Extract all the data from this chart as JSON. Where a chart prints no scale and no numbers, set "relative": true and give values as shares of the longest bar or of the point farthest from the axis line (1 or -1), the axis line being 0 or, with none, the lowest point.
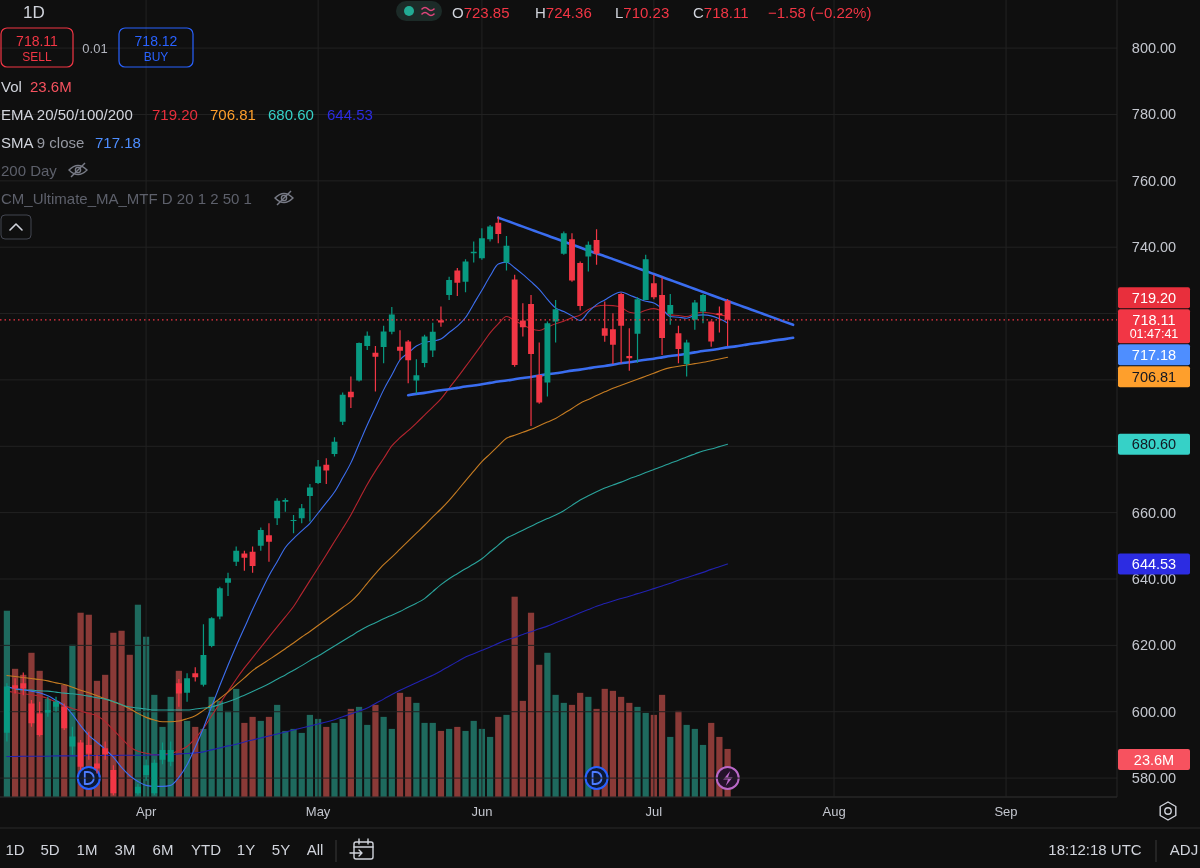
{
  "chart_data": [
    {
      "type": "candlestick",
      "title": "1D",
      "annotations": [
        "O723.85",
        "H724.36",
        "L710.23",
        "C718.11",
        "−1.58 (−0.22%)",
        "718.11",
        "SELL",
        "0.01",
        "718.12",
        "BUY",
        "EMA 20/50/100/200",
        "SMA 9 close",
        "200 Day",
        "CM_Ultimate_MA_MTF D 20 1 2 50 1",
        "01:47:41",
        "1D",
        "5D",
        "1M",
        "3M",
        "6M",
        "YTD",
        "1Y",
        "5Y",
        "All",
        "18:12:18 UTC",
        "ADJ",
        "719.20",
        "706.81",
        "680.60",
        "644.53",
        "717.18"
      ],
      "categories": [
        null,
        null,
        null,
        null,
        null,
        null,
        null,
        null,
        null,
        null,
        null,
        null,
        null,
        null,
        null,
        null,
        null,
        "Apr",
        null,
        null,
        null,
        null,
        null,
        null,
        null,
        null,
        null,
        null,
        null,
        null,
        null,
        null,
        null,
        null,
        null,
        null,
        null,
        null,
        "May",
        null,
        null,
        null,
        null,
        null,
        null,
        null,
        null,
        null,
        null,
        null,
        null,
        null,
        null,
        null,
        null,
        null,
        null,
        null,
        "Jun",
        null,
        null,
        null,
        null,
        null,
        null,
        null,
        null,
        null,
        null,
        null,
        null,
        null,
        null,
        null,
        null,
        null,
        null,
        null,
        null,
        "Jul",
        null,
        null,
        null,
        null,
        null,
        null,
        null,
        null,
        null,
        null,
        null,
        null,
        null,
        null,
        null,
        null,
        null,
        null,
        null,
        null,
        null,
        "Aug",
        null,
        null,
        null,
        null,
        null,
        null,
        null,
        null,
        null,
        null,
        null,
        null,
        null,
        null,
        null,
        null,
        null,
        null,
        null,
        null,
        "Sep",
        null,
        null,
        null,
        null,
        null,
        null,
        null,
        null,
        null,
        null,
        null,
        null,
        null
      ],
      "ohlc": [
        [
          593.7,
          608.6,
          591.0,
          607.6
        ],
        [
          608.0,
          610.1,
          605.5,
          607.0
        ],
        [
          608.6,
          611.8,
          605.0,
          607.0
        ],
        [
          602.5,
          603.5,
          595.5,
          596.5
        ],
        [
          599.5,
          603.0,
          592.5,
          593.0
        ],
        [
          599.7,
          604.5,
          598.5,
          600.5
        ],
        [
          601.5,
          604.5,
          600.0,
          603.0
        ],
        [
          601.5,
          602.5,
          594.5,
          595.0
        ],
        [
          589.5,
          595.5,
          587.0,
          592.5
        ],
        [
          590.7,
          591.5,
          582.4,
          583.4
        ],
        [
          590.0,
          594.0,
          585.5,
          587.3
        ],
        [
          584.4,
          586.9,
          581.4,
          582.9
        ],
        [
          589.0,
          591.0,
          585.5,
          587.2
        ],
        [
          582.4,
          583.9,
          574.8,
          575.4
        ],
        null,
        null,
        [
          575.4,
          578.2,
          575.0,
          577.4
        ],
        [
          580.9,
          585.6,
          579.2,
          583.9
        ],
        [
          575.4,
          585.6,
          575.0,
          584.6
        ],
        [
          585.5,
          590.7,
          584.2,
          588.5
        ],
        [
          584.9,
          591.0,
          583.6,
          588.5
        ],
        [
          608.6,
          609.9,
          601.5,
          605.5
        ],
        [
          605.7,
          611.6,
          603.0,
          610.1
        ],
        [
          611.6,
          613.4,
          609.1,
          610.4
        ],
        [
          608.1,
          626.4,
          607.6,
          617.1
        ],
        [
          619.8,
          628.5,
          619.4,
          628.2
        ],
        [
          628.7,
          637.7,
          627.9,
          637.2
        ],
        [
          638.9,
          641.9,
          634.9,
          640.2
        ],
        [
          645.2,
          649.8,
          643.9,
          648.5
        ],
        [
          647.7,
          648.5,
          642.5,
          646.4
        ],
        [
          648.2,
          649.8,
          641.9,
          643.9
        ],
        [
          650.0,
          655.5,
          648.5,
          654.8
        ],
        [
          653.2,
          656.8,
          645.2,
          651.2
        ],
        [
          658.3,
          664.3,
          656.3,
          663.6
        ],
        [
          663.3,
          664.3,
          660.3,
          663.8
        ],
        [
          657.6,
          659.3,
          653.8,
          657.8
        ],
        [
          658.3,
          662.6,
          656.8,
          661.3
        ],
        [
          665.0,
          668.6,
          657.3,
          667.6
        ],
        [
          668.9,
          675.9,
          668.6,
          673.9
        ],
        [
          674.4,
          676.4,
          668.6,
          672.7
        ],
        [
          677.7,
          682.7,
          676.9,
          681.4
        ],
        [
          687.4,
          696.2,
          686.4,
          695.5
        ],
        [
          696.4,
          701.0,
          691.5,
          694.8
        ],
        [
          699.8,
          711.3,
          699.5,
          711.1
        ],
        [
          710.2,
          714.6,
          709.0,
          713.3
        ],
        [
          708.2,
          710.2,
          696.5,
          707.0
        ],
        [
          709.9,
          716.3,
          705.0,
          714.6
        ],
        [
          714.5,
          722.0,
          713.8,
          719.7
        ],
        [
          710.0,
          715.0,
          706.0,
          708.8
        ],
        [
          711.6,
          712.0,
          699.0,
          705.9
        ],
        [
          699.8,
          706.2,
          695.9,
          701.4
        ],
        [
          705.1,
          713.6,
          703.8,
          713.1
        ],
        [
          708.9,
          717.2,
          706.9,
          714.5
        ],
        [
          718.0,
          722.1,
          716.0,
          717.3
        ],
        [
          725.6,
          731.1,
          724.1,
          730.1
        ],
        [
          733.0,
          733.7,
          725.3,
          729.3
        ],
        [
          729.6,
          736.4,
          726.4,
          735.7
        ],
        [
          738.2,
          741.7,
          735.4,
          738.6
        ],
        [
          736.7,
          745.7,
          736.2,
          742.7
        ],
        [
          742.4,
          746.7,
          741.7,
          746.2
        ],
        [
          747.4,
          749.2,
          741.2,
          744.0
        ],
        [
          735.4,
          743.4,
          733.0,
          740.4
        ],
        [
          730.3,
          731.7,
          704.0,
          704.5
        ],
        [
          717.9,
          723.1,
          713.1,
          715.9
        ],
        [
          722.9,
          725.6,
          686.1,
          707.8
        ],
        [
          701.5,
          711.3,
          692.8,
          693.2
        ],
        [
          699.2,
          717.6,
          695.0,
          717.1
        ],
        [
          717.6,
          724.1,
          711.3,
          721.3
        ],
        [
          738.0,
          744.7,
          737.7,
          744.2
        ],
        [
          742.4,
          744.2,
          729.6,
          730.0
        ],
        [
          735.2,
          735.7,
          720.9,
          722.3
        ],
        [
          737.2,
          741.7,
          732.7,
          740.7
        ],
        [
          742.2,
          745.4,
          734.7,
          738.0
        ],
        [
          715.6,
          723.6,
          711.5,
          713.3
        ],
        [
          715.3,
          720.1,
          704.8,
          710.6
        ],
        [
          725.9,
          726.3,
          705.0,
          716.3
        ],
        [
          707.2,
          715.6,
          702.8,
          706.5
        ],
        [
          713.9,
          724.9,
          705.2,
          724.3
        ],
        [
          724.1,
          737.7,
          724.1,
          736.4
        ],
        [
          729.1,
          731.7,
          724.3,
          724.9
        ],
        [
          725.6,
          730.9,
          707.5,
          712.6
        ],
        [
          719.9,
          725.9,
          716.6,
          722.6
        ],
        [
          714.1,
          716.3,
          705.0,
          709.3
        ],
        [
          704.8,
          712.1,
          701.0,
          711.3
        ],
        [
          718.1,
          724.1,
          715.1,
          723.3
        ],
        [
          720.6,
          725.9,
          717.1,
          725.6
        ],
        [
          717.6,
          717.9,
          710.0,
          711.6
        ],
        [
          720.1,
          722.1,
          714.3,
          719.6
        ],
        [
          723.85,
          724.36,
          710.23,
          718.11
        ],
        null,
        null,
        null,
        null,
        null,
        null,
        null,
        null,
        null,
        null,
        null,
        null,
        null,
        null,
        null,
        null,
        null,
        null,
        null,
        null,
        null,
        null,
        null,
        null,
        null,
        null,
        null,
        null,
        null,
        null,
        null,
        null,
        null,
        null,
        null,
        null,
        null,
        null,
        null,
        null,
        null,
        null,
        null,
        null,
        null,
        null,
        null
      ],
      "colors": [
        "#089981",
        "#f23645",
        "#f23645",
        "#f23645",
        "#f23645",
        "#089981",
        "#089981",
        "#f23645",
        "#089981",
        "#f23645",
        "#f23645",
        "#f23645",
        "#f23645",
        "#f23645",
        "#f23645",
        "#f23645",
        "#089981",
        "#089981",
        "#089981",
        "#089981",
        "#089981",
        "#f23645",
        "#089981",
        "#f23645",
        "#089981",
        "#089981",
        "#089981",
        "#089981",
        "#089981",
        "#f23645",
        "#f23645",
        "#089981",
        "#f23645",
        "#089981",
        "#089981",
        "#089981",
        "#089981",
        "#089981",
        "#089981",
        "#f23645",
        "#089981",
        "#089981",
        "#f23645",
        "#089981",
        "#089981",
        "#f23645",
        "#089981",
        "#089981",
        "#f23645",
        "#f23645",
        "#089981",
        "#089981",
        "#089981",
        "#f23645",
        "#089981",
        "#f23645",
        "#089981",
        "#089981",
        "#089981",
        "#089981",
        "#f23645",
        "#089981",
        "#f23645",
        "#f23645",
        "#f23645",
        "#f23645",
        "#089981",
        "#089981",
        "#089981",
        "#f23645",
        "#f23645",
        "#089981",
        "#f23645",
        "#f23645",
        "#f23645",
        "#f23645",
        "#f23645",
        "#089981",
        "#089981",
        "#f23645",
        "#f23645",
        "#089981",
        "#f23645",
        "#089981",
        "#089981",
        "#089981",
        "#f23645",
        "#f23645",
        "#f23645",
        null,
        null,
        null,
        null,
        null,
        null,
        null,
        null,
        null,
        null,
        null,
        null,
        null,
        null,
        null,
        null,
        null,
        null,
        null,
        null,
        null,
        null,
        null,
        null,
        null,
        null,
        null,
        null,
        null,
        null,
        null,
        null,
        null,
        null,
        null,
        null,
        null,
        null,
        null,
        null,
        null,
        null,
        null,
        null,
        null,
        null,
        null
      ],
      "series": [
        {
          "type": "line",
          "color": "#b5252f",
          "values": [
            606.2,
            605.8,
            605.4,
            605.1,
            604.7,
            604.0,
            602.9,
            601.8,
            601.0,
            600.2,
            599.5,
            598.8,
            597.0,
            594.5,
            592.0,
            589.5,
            588.1,
            587.5,
            587.0,
            587.2,
            587.4,
            588.3,
            589.5,
            592.0,
            595.0,
            598.8,
            602.5,
            606.1,
            609.8,
            613.2,
            616.3,
            619.4,
            622.5,
            625.6,
            628.6,
            631.7,
            635.6,
            639.5,
            643.4,
            647.3,
            651.3,
            655.2,
            659.3,
            663.9,
            668.5,
            672.6,
            676.3,
            680.1,
            682.6,
            684.7,
            687.0,
            689.4,
            691.8,
            694.3,
            697.5,
            700.7,
            704.0,
            707.3,
            710.7,
            714.2,
            716.9,
            719.1,
            717.9,
            716.6,
            715.4,
            714.9,
            715.9,
            716.9,
            717.7,
            718.7,
            719.6,
            721.2,
            722.2,
            722.5,
            722.4,
            721.9,
            720.4,
            720.1,
            721.0,
            721.5,
            720.8,
            719.6,
            719.4,
            719.1,
            720.0,
            720.4,
            720.1,
            719.6,
            719.2,
            null,
            null,
            null,
            null,
            null,
            null,
            null,
            null,
            null,
            null,
            null,
            null,
            null,
            null,
            null,
            null,
            null,
            null,
            null,
            null,
            null,
            null,
            null,
            null,
            null,
            null,
            null,
            null,
            null,
            null,
            null,
            null,
            null,
            null,
            null,
            null,
            null,
            null,
            null,
            null,
            null,
            null,
            null,
            null,
            null,
            null,
            null
          ]
        },
        {
          "type": "line",
          "color": "#c67c22",
          "values": [
            610.9,
            610.6,
            610.3,
            610.0,
            609.7,
            609.3,
            608.7,
            608.2,
            607.4,
            606.5,
            605.7,
            604.8,
            603.9,
            603.0,
            602.1,
            600.9,
            599.5,
            598.3,
            597.5,
            597.0,
            597.0,
            597.2,
            597.9,
            598.8,
            600.4,
            602.1,
            604.0,
            605.9,
            608.1,
            610.2,
            612.4,
            614.1,
            615.7,
            617.3,
            619.0,
            620.7,
            622.5,
            624.2,
            626.0,
            627.8,
            629.6,
            631.4,
            633.2,
            635.7,
            638.7,
            641.6,
            644.3,
            646.6,
            649.0,
            651.4,
            653.8,
            656.2,
            658.7,
            661.1,
            663.7,
            666.6,
            669.6,
            672.5,
            675.4,
            677.7,
            680.1,
            682.4,
            683.3,
            684.2,
            685.1,
            686.2,
            687.3,
            688.4,
            689.9,
            691.4,
            693.0,
            694.1,
            695.3,
            696.4,
            697.5,
            698.4,
            699.3,
            700.2,
            701.1,
            702.0,
            703.0,
            703.7,
            704.1,
            704.5,
            704.9,
            705.3,
            705.8,
            706.3,
            706.81,
            null,
            null,
            null,
            null,
            null,
            null,
            null,
            null,
            null,
            null,
            null,
            null,
            null,
            null,
            null,
            null,
            null,
            null,
            null,
            null,
            null,
            null,
            null,
            null,
            null,
            null,
            null,
            null,
            null,
            null,
            null,
            null,
            null,
            null,
            null,
            null,
            null,
            null,
            null,
            null,
            null,
            null,
            null,
            null,
            null,
            null,
            null
          ]
        },
        {
          "type": "line",
          "color": "#2aa39b",
          "values": [
            null,
            606.8,
            606.6,
            606.5,
            606.3,
            606.2,
            605.9,
            605.6,
            605.4,
            605.1,
            604.7,
            604.2,
            603.8,
            603.1,
            602.1,
            601.4,
            601.1,
            600.8,
            600.5,
            600.5,
            600.5,
            600.5,
            600.5,
            600.8,
            601.1,
            601.4,
            602.2,
            603.0,
            603.9,
            605.0,
            606.1,
            607.2,
            608.4,
            609.8,
            611.1,
            612.5,
            613.9,
            615.4,
            616.8,
            618.3,
            619.8,
            621.3,
            622.8,
            624.3,
            625.7,
            626.8,
            628.0,
            629.1,
            630.2,
            631.5,
            632.7,
            634.1,
            636.2,
            638.3,
            640.1,
            641.6,
            643.1,
            644.5,
            646.1,
            648.2,
            650.2,
            652.3,
            653.5,
            654.7,
            655.9,
            657.1,
            658.2,
            659.3,
            660.6,
            662.2,
            663.8,
            665.1,
            666.3,
            667.4,
            668.3,
            669.2,
            670.2,
            671.1,
            672.1,
            673.0,
            673.9,
            674.9,
            675.8,
            676.8,
            677.7,
            678.6,
            679.2,
            679.9,
            680.6,
            null,
            null,
            null,
            null,
            null,
            null,
            null,
            null,
            null,
            null,
            null,
            null,
            null,
            null,
            null,
            null,
            null,
            null,
            null,
            null,
            null,
            null,
            null,
            null,
            null,
            null,
            null,
            null,
            null,
            null,
            null,
            null,
            null,
            null,
            null,
            null,
            null,
            null,
            null,
            null,
            null,
            null,
            null,
            null,
            null,
            null,
            null
          ]
        },
        {
          "type": "line",
          "color": "#2222b0",
          "values": [
            586.5,
            586.5,
            586.6,
            586.6,
            586.6,
            586.6,
            586.7,
            586.7,
            586.7,
            586.7,
            586.8,
            586.8,
            586.8,
            586.8,
            586.9,
            586.9,
            586.9,
            586.9,
            587.0,
            587.0,
            587.1,
            587.3,
            587.4,
            587.6,
            587.9,
            588.5,
            589.1,
            589.7,
            590.2,
            590.9,
            591.5,
            592.1,
            592.7,
            593.3,
            593.9,
            594.5,
            595.1,
            595.7,
            596.3,
            596.9,
            597.6,
            598.5,
            599.3,
            600.2,
            601.1,
            602.5,
            603.8,
            605.2,
            606.5,
            607.6,
            608.7,
            609.9,
            611.0,
            612.3,
            613.7,
            615.1,
            616.5,
            617.5,
            618.5,
            619.5,
            620.6,
            621.6,
            622.4,
            623.3,
            624.1,
            625.0,
            625.8,
            626.8,
            627.8,
            628.8,
            629.8,
            630.8,
            631.8,
            632.6,
            633.4,
            634.1,
            634.8,
            635.6,
            636.3,
            637.1,
            637.9,
            638.7,
            639.6,
            640.4,
            641.2,
            642.0,
            642.9,
            643.7,
            644.53,
            null,
            null,
            null,
            null,
            null,
            null,
            null,
            null,
            null,
            null,
            null,
            null,
            null,
            null,
            null,
            null,
            null,
            null,
            null,
            null,
            null,
            null,
            null,
            null,
            null,
            null,
            null,
            null,
            null,
            null,
            null,
            null,
            null,
            null,
            null,
            null,
            null,
            null,
            null,
            null,
            null,
            null,
            null,
            null,
            null,
            null,
            null
          ]
        },
        {
          "type": "line",
          "color": "#3d6ff0",
          "values": [
            607.5,
            607.0,
            606.6,
            606.2,
            605.7,
            604.8,
            603.4,
            601.9,
            599.2,
            595.8,
            592.9,
            590.8,
            588.7,
            586.3,
            583.2,
            580.7,
            579.0,
            577.8,
            577.5,
            577.5,
            577.8,
            580.2,
            584.0,
            589.3,
            595.1,
            601.6,
            607.9,
            614.0,
            619.8,
            625.3,
            630.8,
            636.0,
            641.0,
            645.2,
            649.5,
            652.2,
            654.5,
            656.8,
            659.9,
            663.0,
            666.2,
            670.5,
            675.0,
            680.7,
            686.4,
            691.7,
            697.0,
            701.5,
            706.0,
            708.1,
            710.2,
            711.3,
            711.7,
            712.3,
            714.3,
            716.2,
            718.8,
            722.9,
            727.0,
            731.3,
            734.9,
            735.5,
            733.8,
            731.8,
            729.6,
            727.3,
            724.3,
            721.7,
            720.6,
            719.3,
            717.9,
            720.5,
            722.7,
            724.1,
            725.6,
            726.5,
            725.6,
            724.6,
            723.7,
            723.2,
            721.5,
            719.1,
            718.9,
            718.6,
            719.4,
            719.6,
            719.3,
            718.4,
            717.18,
            null,
            null,
            null,
            null,
            null,
            null,
            null,
            null,
            null,
            null,
            null,
            null,
            null,
            null,
            null,
            null,
            null,
            null,
            null,
            null,
            null,
            null,
            null,
            null,
            null,
            null,
            null,
            null,
            null,
            null,
            null,
            null,
            null,
            null,
            null,
            null,
            null,
            null,
            null,
            null,
            null,
            null,
            null,
            null,
            null,
            null,
            null
          ]
        },
        {
          "type": "line",
          "color": "#3a6df0",
          "values": [
            null,
            null,
            null,
            null,
            null,
            null,
            null,
            null,
            null,
            null,
            null,
            null,
            null,
            null,
            null,
            null,
            null,
            null,
            null,
            null,
            null,
            null,
            null,
            null,
            null,
            null,
            null,
            null,
            null,
            null,
            null,
            null,
            null,
            null,
            null,
            null,
            null,
            null,
            null,
            null,
            null,
            null,
            null,
            null,
            null,
            null,
            null,
            null,
            null,
            null,
            null,
            null,
            null,
            null,
            null,
            null,
            null,
            null,
            null,
            null,
            748.9,
            748.0,
            747.1,
            746.2,
            745.3,
            744.4,
            743.5,
            742.6,
            741.7,
            740.8,
            739.9,
            739.0,
            738.1,
            737.3,
            736.4,
            735.5,
            734.6,
            733.7,
            732.8,
            731.9,
            731.0,
            730.1,
            729.2,
            728.3,
            727.4,
            726.5,
            725.6,
            724.7,
            723.8,
            722.9,
            722.0,
            721.1,
            720.2,
            719.3,
            718.4,
            717.5,
            716.6,
            null,
            null,
            null,
            null,
            null,
            null,
            null,
            null,
            null,
            null,
            null,
            null,
            null,
            null,
            null,
            null,
            null,
            null,
            null,
            null,
            null,
            null,
            null,
            null,
            null,
            null,
            null,
            null,
            null,
            null,
            null,
            null,
            null,
            null,
            null,
            null,
            null,
            null,
            null
          ]
        },
        {
          "type": "line",
          "color": "#3a6df0",
          "values": [
            null,
            null,
            null,
            null,
            null,
            null,
            null,
            null,
            null,
            null,
            null,
            null,
            null,
            null,
            null,
            null,
            null,
            null,
            null,
            null,
            null,
            null,
            null,
            null,
            null,
            null,
            null,
            null,
            null,
            null,
            null,
            null,
            null,
            null,
            null,
            null,
            null,
            null,
            null,
            null,
            null,
            null,
            null,
            null,
            null,
            null,
            null,
            null,
            null,
            695.4,
            695.8,
            696.1,
            696.5,
            696.9,
            697.2,
            697.6,
            698.0,
            698.3,
            698.7,
            699.1,
            699.5,
            699.8,
            700.2,
            700.6,
            700.9,
            701.3,
            701.7,
            702.0,
            702.4,
            702.8,
            703.1,
            703.5,
            703.9,
            704.2,
            704.6,
            705.0,
            705.3,
            705.7,
            706.1,
            706.4,
            706.8,
            707.2,
            707.5,
            707.9,
            708.3,
            708.7,
            709.0,
            709.4,
            709.8,
            710.1,
            710.5,
            710.9,
            711.2,
            711.6,
            712.0,
            712.3,
            712.7,
            null,
            null,
            null,
            null,
            null,
            null,
            null,
            null,
            null,
            null,
            null,
            null,
            null,
            null,
            null,
            null,
            null,
            null,
            null,
            null,
            null,
            null,
            null,
            null,
            null,
            null,
            null,
            null,
            null,
            null,
            null,
            null,
            null,
            null,
            null,
            null,
            null,
            null,
            null
          ]
        }
      ],
      "ylim": [
        574.3,
        814.5
      ],
      "yticks": [
        {
          "value": 580,
          "label": "580.00"
        },
        {
          "value": 600,
          "label": "600.00"
        },
        {
          "value": 620,
          "label": "620.00"
        },
        {
          "value": 640,
          "label": "640.00"
        },
        {
          "value": 660,
          "label": "660.00"
        },
        {
          "value": 680,
          "label": null
        },
        {
          "value": 700,
          "label": null
        },
        {
          "value": 720,
          "label": null
        },
        {
          "value": 740,
          "label": "740.00"
        },
        {
          "value": 760,
          "label": "760.00"
        },
        {
          "value": 780,
          "label": "780.00"
        },
        {
          "value": 800,
          "label": "800.00"
        }
      ],
      "grid": true,
      "ref_lines": [
        {
          "axis": "y",
          "value": 718.11,
          "label": "718.11",
          "color": "#f23645",
          "line_style": "dotted"
        }
      ]
    },
    {
      "type": "bar",
      "annotations": [
        "Vol",
        "23.6M"
      ],
      "categories": [
        null,
        null,
        null,
        null,
        null,
        null,
        null,
        null,
        null,
        null,
        null,
        null,
        null,
        null,
        null,
        null,
        null,
        null,
        null,
        null,
        null,
        null,
        null,
        null,
        null,
        null,
        null,
        null,
        null,
        null,
        null,
        null,
        null,
        null,
        null,
        null,
        null,
        null,
        null,
        null,
        null,
        null,
        null,
        null,
        null,
        null,
        null,
        null,
        null,
        null,
        null,
        null,
        null,
        null,
        null,
        null,
        null,
        null,
        null,
        null,
        null,
        null,
        null,
        null,
        null,
        null,
        null,
        null,
        null,
        null,
        null,
        null,
        null,
        null,
        null,
        null,
        null,
        null,
        null,
        null,
        null,
        null,
        null,
        null,
        null,
        null,
        null,
        null,
        null,
        null,
        null,
        null,
        null,
        null,
        null,
        null,
        null,
        null,
        null,
        null,
        null,
        null,
        null,
        null,
        null,
        null,
        null,
        null,
        null,
        null,
        null,
        null,
        null,
        null,
        null,
        null,
        null,
        null,
        null,
        null,
        null,
        null,
        null,
        null,
        null,
        null,
        null,
        null,
        null,
        null,
        null,
        null,
        null,
        null,
        null,
        null
      ],
      "values": [
        0.93,
        0.64,
        0.61,
        0.72,
        0.63,
        0.49,
        0.48,
        0.56,
        0.76,
        0.92,
        0.91,
        0.58,
        0.61,
        0.82,
        0.83,
        0.71,
        0.96,
        0.8,
        0.51,
        0.35,
        0.5,
        0.63,
        0.38,
        0.35,
        0.34,
        0.5,
        0.48,
        0.43,
        0.54,
        0.37,
        0.4,
        0.38,
        0.4,
        0.46,
        0.33,
        0.34,
        0.32,
        0.41,
        0.39,
        0.35,
        0.37,
        0.39,
        0.44,
        0.45,
        0.36,
        0.46,
        0.4,
        0.34,
        0.52,
        0.5,
        0.47,
        0.37,
        0.37,
        0.33,
        0.34,
        0.35,
        0.33,
        0.38,
        0.34,
        0.3,
        0.4,
        0.41,
        1,
        0.48,
        0.92,
        0.66,
        0.72,
        0.51,
        0.47,
        0.46,
        0.52,
        0.5,
        0.44,
        0.54,
        0.53,
        0.5,
        0.47,
        0.45,
        0.42,
        0.41,
        0.51,
        0.3,
        0.43,
        0.36,
        0.34,
        0.26,
        0.37,
        0.3,
        0.24,
        null,
        null,
        null,
        null,
        null,
        null,
        null,
        null,
        null,
        null,
        null,
        null,
        null,
        null,
        null,
        null,
        null,
        null,
        null,
        null,
        null,
        null,
        null,
        null,
        null,
        null,
        null,
        null,
        null,
        null,
        null,
        null,
        null,
        null,
        null,
        null,
        null,
        null,
        null,
        null,
        null,
        null,
        null,
        null,
        null,
        null,
        null
      ],
      "colors": [
        "#1e6a5e",
        "#8a3a37",
        "#8a3a37",
        "#8a3a37",
        "#8a3a37",
        "#1e6a5e",
        "#1e6a5e",
        "#8a3a37",
        "#1e6a5e",
        "#8a3a37",
        "#8a3a37",
        "#8a3a37",
        "#8a3a37",
        "#8a3a37",
        "#8a3a37",
        "#8a3a37",
        "#1e6a5e",
        "#1e6a5e",
        "#1e6a5e",
        "#1e6a5e",
        "#1e6a5e",
        "#8a3a37",
        "#1e6a5e",
        "#8a3a37",
        "#1e6a5e",
        "#1e6a5e",
        "#1e6a5e",
        "#1e6a5e",
        "#1e6a5e",
        "#8a3a37",
        "#8a3a37",
        "#1e6a5e",
        "#8a3a37",
        "#1e6a5e",
        "#1e6a5e",
        "#1e6a5e",
        "#1e6a5e",
        "#1e6a5e",
        "#1e6a5e",
        "#8a3a37",
        "#1e6a5e",
        "#1e6a5e",
        "#8a3a37",
        "#1e6a5e",
        "#1e6a5e",
        "#8a3a37",
        "#1e6a5e",
        "#1e6a5e",
        "#8a3a37",
        "#8a3a37",
        "#1e6a5e",
        "#1e6a5e",
        "#1e6a5e",
        "#8a3a37",
        "#1e6a5e",
        "#8a3a37",
        "#1e6a5e",
        "#1e6a5e",
        "#1e6a5e",
        "#1e6a5e",
        "#8a3a37",
        "#1e6a5e",
        "#8a3a37",
        "#8a3a37",
        "#8a3a37",
        "#8a3a37",
        "#1e6a5e",
        "#1e6a5e",
        "#1e6a5e",
        "#8a3a37",
        "#8a3a37",
        "#1e6a5e",
        "#8a3a37",
        "#8a3a37",
        "#8a3a37",
        "#8a3a37",
        "#8a3a37",
        "#1e6a5e",
        "#1e6a5e",
        "#8a3a37",
        "#8a3a37",
        "#1e6a5e",
        "#8a3a37",
        "#1e6a5e",
        "#1e6a5e",
        "#1e6a5e",
        "#8a3a37",
        "#8a3a37",
        "#8a3a37",
        null,
        null,
        null,
        null,
        null,
        null,
        null,
        null,
        null,
        null,
        null,
        null,
        null,
        null,
        null,
        null,
        null,
        null,
        null,
        null,
        null,
        null,
        null,
        null,
        null,
        null,
        null,
        null,
        null,
        null,
        null,
        null,
        null,
        null,
        null,
        null,
        null,
        null,
        null,
        null,
        null,
        null,
        null,
        null,
        null,
        null,
        null
      ],
      "relative": true
    }
  ]
}
